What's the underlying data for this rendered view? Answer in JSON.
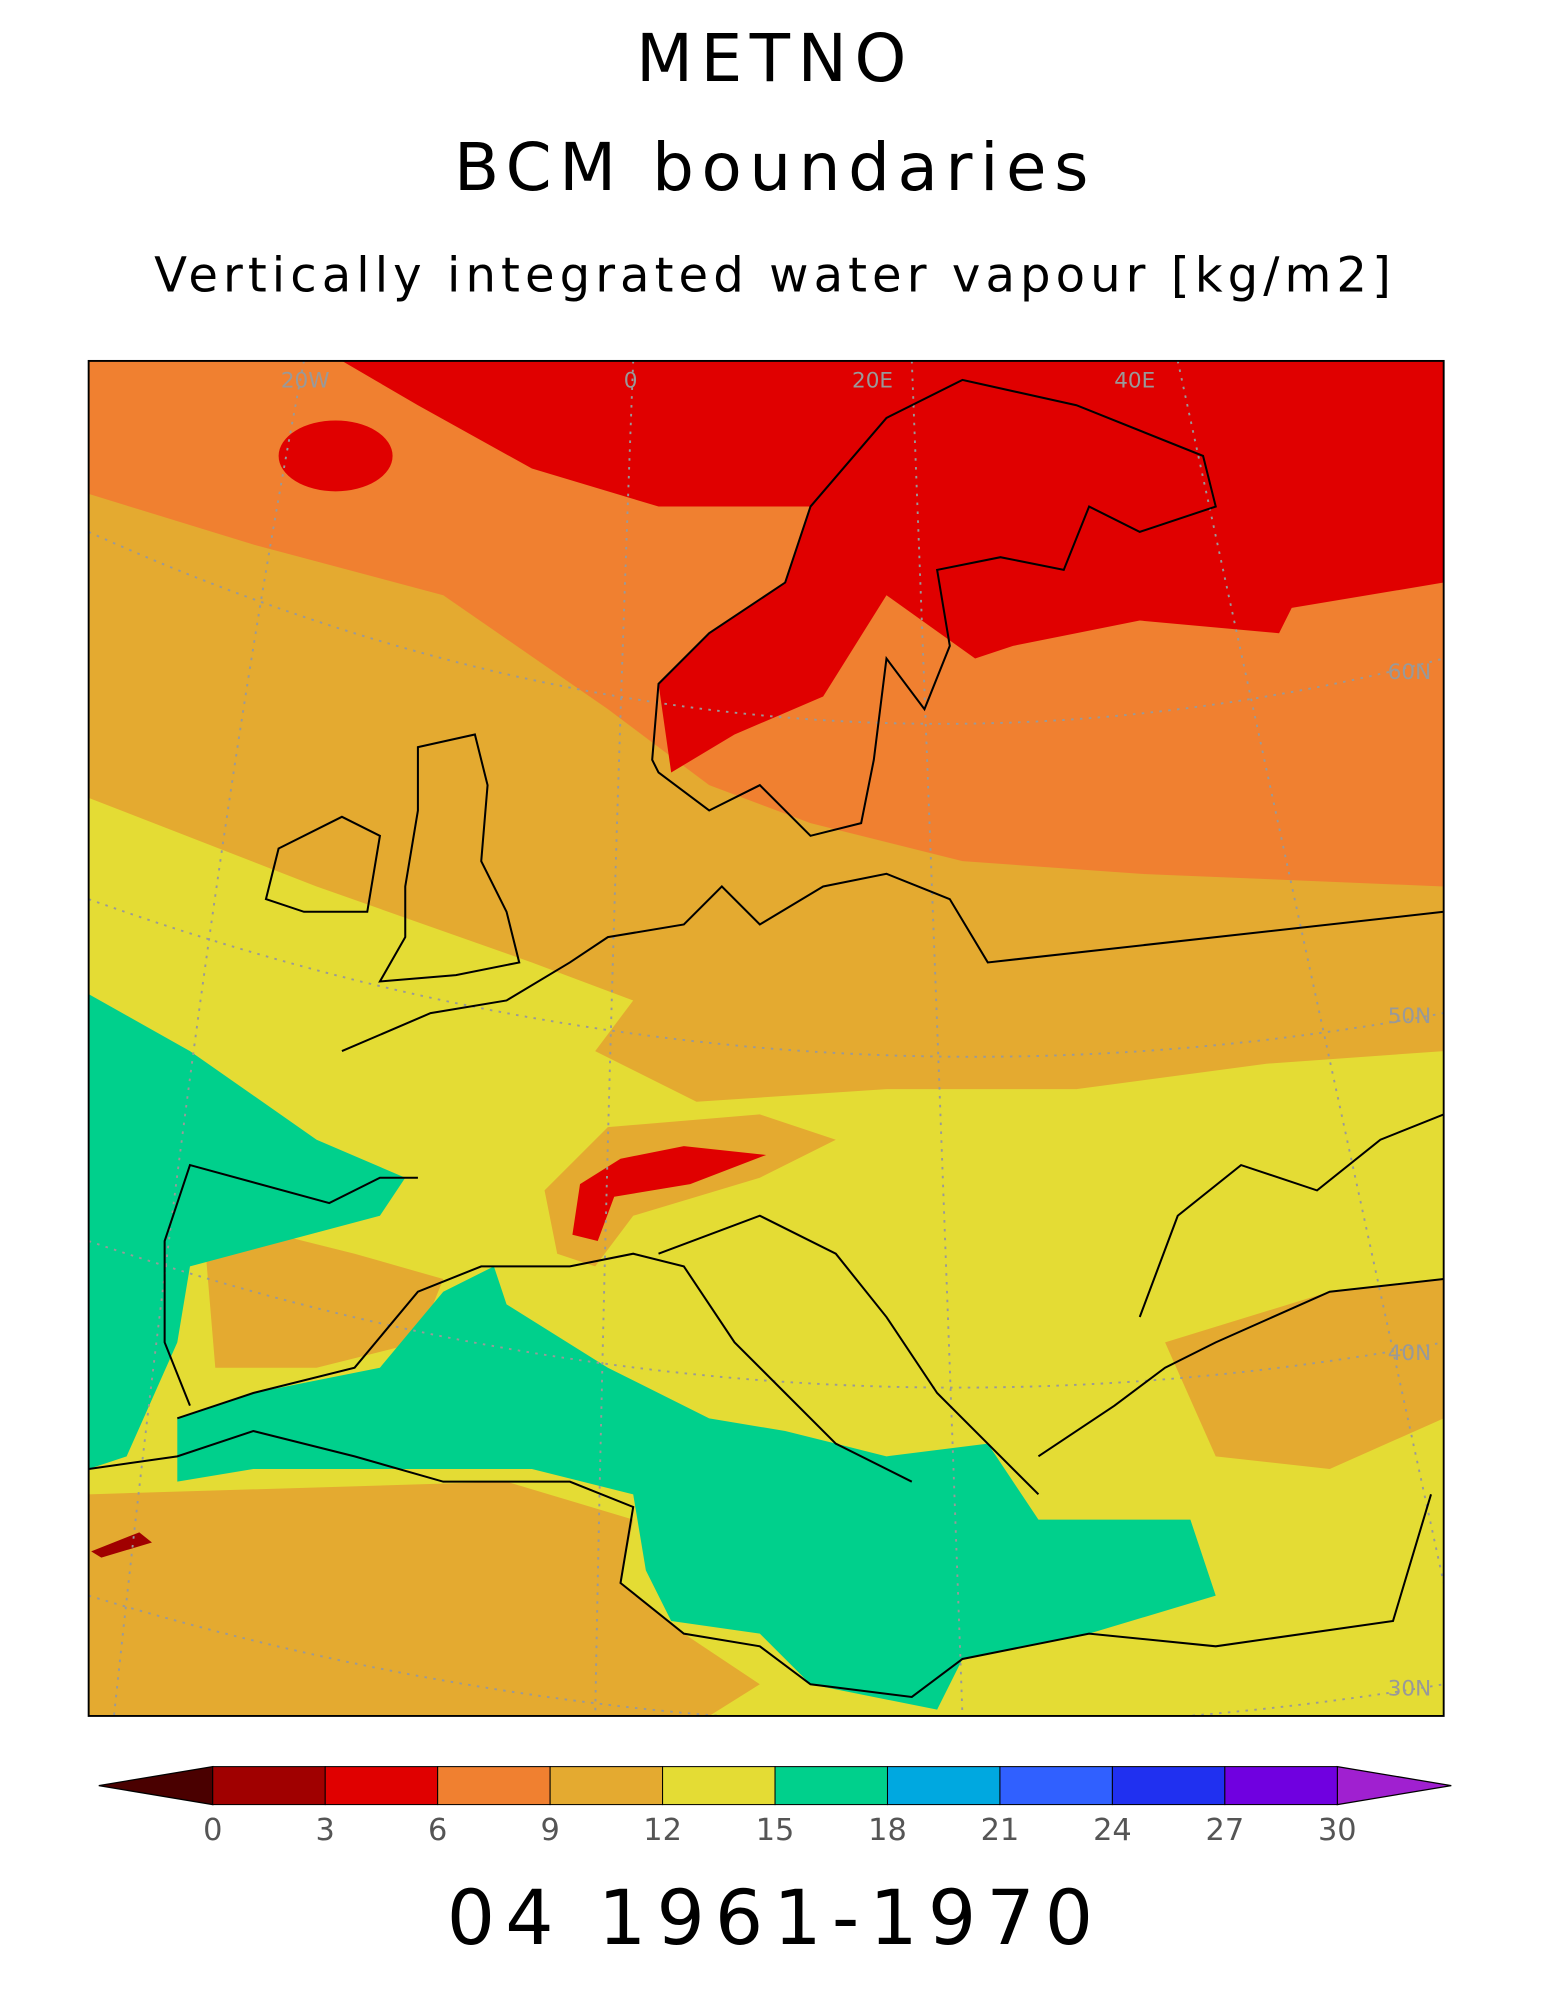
{
  "title": "METNO",
  "subtitle": "BCM boundaries",
  "variable": "Vertically integrated water vapour [kg/m2]",
  "map": {
    "lon_labels": [
      "20W",
      "0",
      "20E",
      "40E"
    ],
    "lat_labels": [
      "60N",
      "50N",
      "40N",
      "30N"
    ]
  },
  "colorbar": {
    "levels": [
      0,
      3,
      6,
      9,
      12,
      15,
      18,
      21,
      24,
      27,
      30
    ],
    "under_color": "#4a0000",
    "colors": [
      "#a00000",
      "#e00000",
      "#f08030",
      "#e4aa30",
      "#e4dc34",
      "#00d08c",
      "#00a8e0",
      "#3060ff",
      "#2030f0",
      "#7000e0"
    ],
    "over_color": "#a020d0"
  },
  "footer": "04 1961-1970"
}
